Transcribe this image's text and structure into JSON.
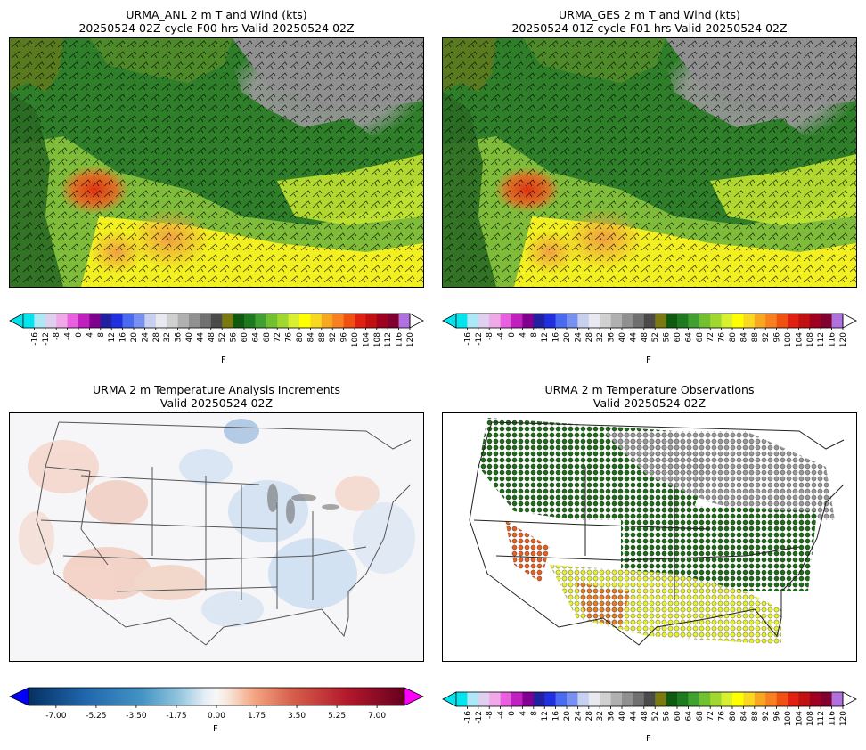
{
  "panels": [
    {
      "title_line1": "URMA_ANL 2 m T and Wind (kts)",
      "title_line2": "20250524 02Z cycle F00 hrs Valid 20250524 02Z"
    },
    {
      "title_line1": "URMA_GES 2 m T and Wind (kts)",
      "title_line2": "20250524 01Z cycle F01 hrs Valid 20250524 02Z"
    },
    {
      "title_line1": "URMA 2 m Temperature Analysis Increments",
      "title_line2": "Valid 20250524 02Z"
    },
    {
      "title_line1": "URMA 2 m Temperature Observations",
      "title_line2": "Valid 20250524 02Z"
    }
  ],
  "temp_colorbar": {
    "unit": "F",
    "ticks": [
      "-16",
      "-12",
      "-8",
      "-4",
      "0",
      "4",
      "8",
      "12",
      "16",
      "20",
      "24",
      "28",
      "32",
      "36",
      "40",
      "44",
      "48",
      "52",
      "56",
      "60",
      "64",
      "68",
      "72",
      "76",
      "80",
      "84",
      "88",
      "92",
      "96",
      "100",
      "104",
      "108",
      "112",
      "116",
      "120"
    ],
    "under_color": "#00e5ee",
    "over_color": "#ffffff",
    "colors": [
      "#00e5ee",
      "#aee8f7",
      "#e0d0f0",
      "#f0a8e8",
      "#e860e0",
      "#c020c0",
      "#80008f",
      "#2020a0",
      "#2030e0",
      "#4a6af0",
      "#7890f0",
      "#c8d0f0",
      "#e8e8f0",
      "#d0d0d0",
      "#b0b0b0",
      "#909090",
      "#707070",
      "#4a4a4a",
      "#7a7a10",
      "#105a10",
      "#1e7a1e",
      "#40a030",
      "#70c030",
      "#a0d830",
      "#d8f030",
      "#ffff00",
      "#f8d820",
      "#f8a820",
      "#f88020",
      "#f05010",
      "#e02010",
      "#c01010",
      "#a00020",
      "#800030",
      "#b070e0"
    ]
  },
  "incr_colorbar": {
    "unit": "F",
    "ticks": [
      "-7.00",
      "-5.25",
      "-3.50",
      "-1.75",
      "0.00",
      "1.75",
      "3.50",
      "5.25",
      "7.00"
    ],
    "min": -8.2,
    "max": 8.2,
    "under_color": "#0000ff",
    "over_color": "#ff00ff"
  }
}
